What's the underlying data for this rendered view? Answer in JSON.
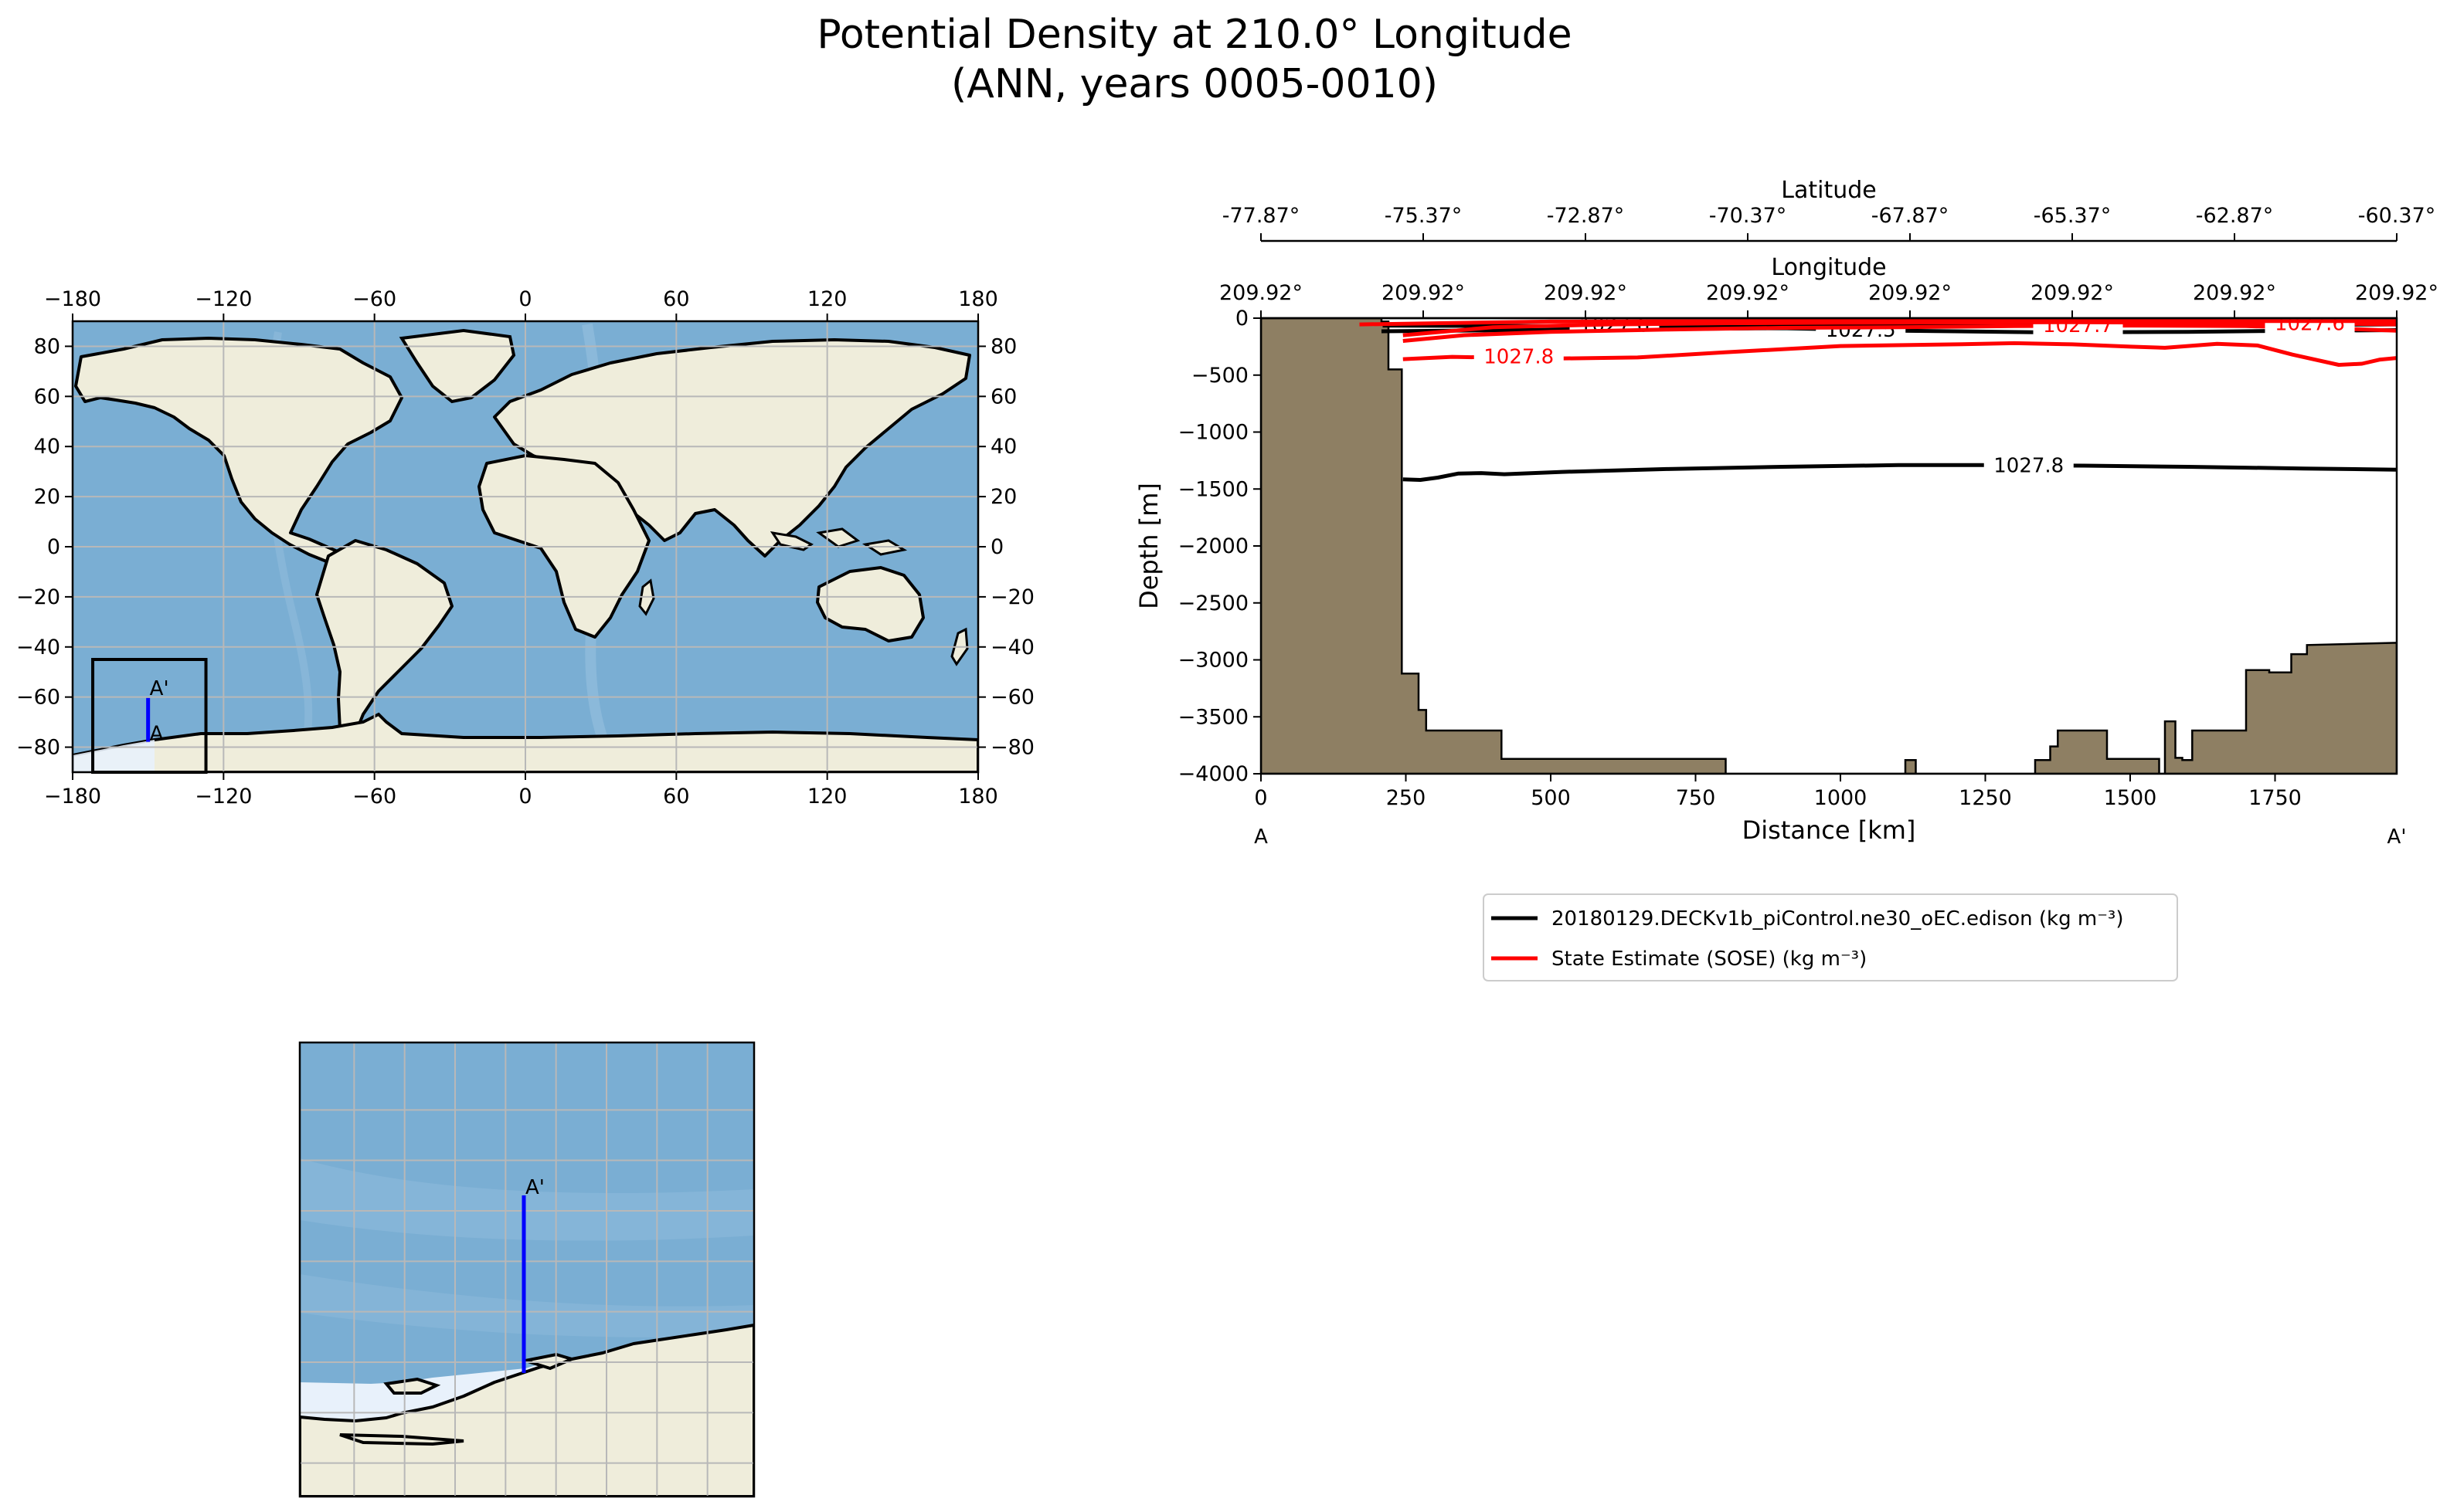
{
  "title": {
    "line1": "Potential Density at 210.0° Longitude",
    "line2": "(ANN, years 0005-0010)"
  },
  "colors": {
    "ocean": "#7aaed3",
    "ocean_light": "#9cc3e2",
    "land": "#efeddb",
    "ice": "#e8f1fb",
    "grid": "#b8b8b8",
    "bathymetry": "#8e7f63",
    "model": "#000000",
    "obs": "#ff0000",
    "transect": "#0000ff"
  },
  "chart_data": [
    {
      "id": "global-map",
      "type": "map",
      "x_ticks": [
        "−180",
        "−120",
        "−60",
        "0",
        "60",
        "120",
        "180"
      ],
      "y_ticks": [
        "80",
        "60",
        "40",
        "20",
        "0",
        "−20",
        "−40",
        "−60",
        "−80"
      ],
      "xlim": [
        -180,
        180
      ],
      "ylim": [
        -90,
        90
      ],
      "inset_box": {
        "lon": [
          -172,
          -127
        ],
        "lat": [
          -90,
          -45
        ]
      },
      "transect": {
        "lon": 210.0,
        "lat_start": -77.87,
        "lat_end": -60.37
      },
      "label_start": "A",
      "label_end": "A'"
    },
    {
      "id": "zoom-map",
      "type": "map",
      "label_end": "A'"
    },
    {
      "id": "section",
      "type": "contour",
      "xlabel": "Distance [km]",
      "ylabel": "Depth [m]",
      "xlim": [
        0,
        1960
      ],
      "ylim": [
        -4000,
        0
      ],
      "x_ticks": [
        0,
        250,
        500,
        750,
        1000,
        1250,
        1500,
        1750
      ],
      "y_ticks": [
        0,
        -500,
        -1000,
        -1500,
        -2000,
        -2500,
        -3000,
        -3500,
        -4000
      ],
      "latitude_label": "Latitude",
      "latitude_ticks": [
        "-77.87°",
        "-75.37°",
        "-72.87°",
        "-70.37°",
        "-67.87°",
        "-65.37°",
        "-62.87°",
        "-60.37°"
      ],
      "longitude_label": "Longitude",
      "longitude_ticks": [
        "209.92°",
        "209.92°",
        "209.92°",
        "209.92°",
        "209.92°",
        "209.92°",
        "209.92°",
        "209.92°"
      ],
      "end_labels": [
        "A",
        "A'"
      ],
      "bathymetry": [
        [
          0,
          0
        ],
        [
          208,
          0
        ],
        [
          208,
          -30
        ],
        [
          220,
          -30
        ],
        [
          220,
          -450
        ],
        [
          243,
          -450
        ],
        [
          243,
          -3120
        ],
        [
          272,
          -3120
        ],
        [
          272,
          -3440
        ],
        [
          285,
          -3440
        ],
        [
          285,
          -3620
        ],
        [
          415,
          -3620
        ],
        [
          415,
          -3870
        ],
        [
          802,
          -3870
        ],
        [
          802,
          -4000
        ],
        [
          1112,
          -4000
        ],
        [
          1112,
          -3880
        ],
        [
          1130,
          -3880
        ],
        [
          1130,
          -4000
        ],
        [
          1336,
          -4000
        ],
        [
          1336,
          -3880
        ],
        [
          1362,
          -3880
        ],
        [
          1362,
          -3760
        ],
        [
          1375,
          -3760
        ],
        [
          1375,
          -3620
        ],
        [
          1460,
          -3620
        ],
        [
          1460,
          -3870
        ],
        [
          1550,
          -3870
        ],
        [
          1550,
          -4000
        ],
        [
          1560,
          -4000
        ],
        [
          1560,
          -3540
        ],
        [
          1578,
          -3540
        ],
        [
          1578,
          -3860
        ],
        [
          1590,
          -3860
        ],
        [
          1590,
          -3880
        ],
        [
          1607,
          -3880
        ],
        [
          1607,
          -3620
        ],
        [
          1700,
          -3620
        ],
        [
          1700,
          -3090
        ],
        [
          1740,
          -3090
        ],
        [
          1740,
          -3110
        ],
        [
          1778,
          -3110
        ],
        [
          1778,
          -2950
        ],
        [
          1805,
          -2950
        ],
        [
          1805,
          -2870
        ],
        [
          1960,
          -2850
        ],
        [
          1960,
          -4000
        ],
        [
          0,
          -4000
        ]
      ],
      "series": [
        {
          "name": "20180129.DECKv1b_piControl.ne30_oEC.edison (kg m⁻³)",
          "color": "#000000",
          "contours": [
            {
              "level": "1027.8",
              "points": [
                [
                  245,
                  -1415
                ],
                [
                  275,
                  -1420
                ],
                [
                  305,
                  -1400
                ],
                [
                  340,
                  -1365
                ],
                [
                  380,
                  -1360
                ],
                [
                  420,
                  -1370
                ],
                [
                  520,
                  -1350
                ],
                [
                  700,
                  -1325
                ],
                [
                  900,
                  -1305
                ],
                [
                  1100,
                  -1290
                ],
                [
                  1240,
                  -1290
                ],
                [
                  1420,
                  -1295
                ],
                [
                  1600,
                  -1305
                ],
                [
                  1800,
                  -1320
                ],
                [
                  1960,
                  -1330
                ]
              ],
              "label_at": [
                1325,
                -1290
              ]
            },
            {
              "level": "1027.5",
              "points": [
                [
                  208,
                  -115
                ],
                [
                  450,
                  -105
                ],
                [
                  700,
                  -95
                ],
                [
                  900,
                  -88
                ],
                [
                  1100,
                  -110
                ],
                [
                  1350,
                  -125
                ],
                [
                  1600,
                  -120
                ],
                [
                  1800,
                  -110
                ],
                [
                  1960,
                  -105
                ]
              ],
              "label_at": [
                1035,
                -100
              ]
            },
            {
              "level": "1027.6",
              "points": [
                [
                  210,
                  -65
                ],
                [
                  500,
                  -70
                ],
                [
                  800,
                  -60
                ],
                [
                  1100,
                  -55
                ],
                [
                  1400,
                  -65
                ],
                [
                  1700,
                  -60
                ],
                [
                  1960,
                  -55
                ]
              ],
              "label_at": [
                610,
                -58
              ]
            }
          ]
        },
        {
          "name": "State Estimate (SOSE) (kg m⁻³)",
          "color": "#ff0000",
          "contours": [
            {
              "level": "1027.8",
              "points": [
                [
                  245,
                  -360
                ],
                [
                  330,
                  -340
                ],
                [
                  500,
                  -355
                ],
                [
                  650,
                  -345
                ],
                [
                  800,
                  -300
                ],
                [
                  1000,
                  -245
                ],
                [
                  1200,
                  -230
                ],
                [
                  1300,
                  -220
                ],
                [
                  1400,
                  -230
                ],
                [
                  1500,
                  -250
                ],
                [
                  1560,
                  -260
                ],
                [
                  1650,
                  -225
                ],
                [
                  1720,
                  -240
                ],
                [
                  1780,
                  -320
                ],
                [
                  1860,
                  -410
                ],
                [
                  1900,
                  -400
                ],
                [
                  1930,
                  -365
                ],
                [
                  1960,
                  -350
                ]
              ],
              "label_at": [
                445,
                -335
              ]
            },
            {
              "level": "1027.7",
              "points": [
                [
                  245,
                  -200
                ],
                [
                  350,
                  -150
                ],
                [
                  500,
                  -120
                ],
                [
                  700,
                  -100
                ],
                [
                  900,
                  -85
                ],
                [
                  1100,
                  -80
                ],
                [
                  1300,
                  -70
                ],
                [
                  1500,
                  -65
                ],
                [
                  1700,
                  -70
                ],
                [
                  1850,
                  -90
                ],
                [
                  1960,
                  -110
                ]
              ],
              "label_at": [
                1410,
                -60
              ]
            },
            {
              "level": "1027.6",
              "points": [
                [
                  245,
                  -150
                ],
                [
                  400,
                  -80
                ],
                [
                  600,
                  -55
                ],
                [
                  800,
                  -45
                ],
                [
                  1000,
                  -40
                ],
                [
                  1200,
                  -38
                ],
                [
                  1400,
                  -35
                ],
                [
                  1600,
                  -40
                ],
                [
                  1800,
                  -45
                ],
                [
                  1960,
                  -55
                ]
              ],
              "label_at": [
                1810,
                -45
              ]
            },
            {
              "level": "",
              "points": [
                [
                  170,
                  -55
                ],
                [
                  500,
                  -30
                ],
                [
                  800,
                  -25
                ],
                [
                  1100,
                  -20
                ],
                [
                  1400,
                  -20
                ],
                [
                  1700,
                  -25
                ],
                [
                  1960,
                  -25
                ]
              ]
            }
          ]
        }
      ]
    }
  ]
}
